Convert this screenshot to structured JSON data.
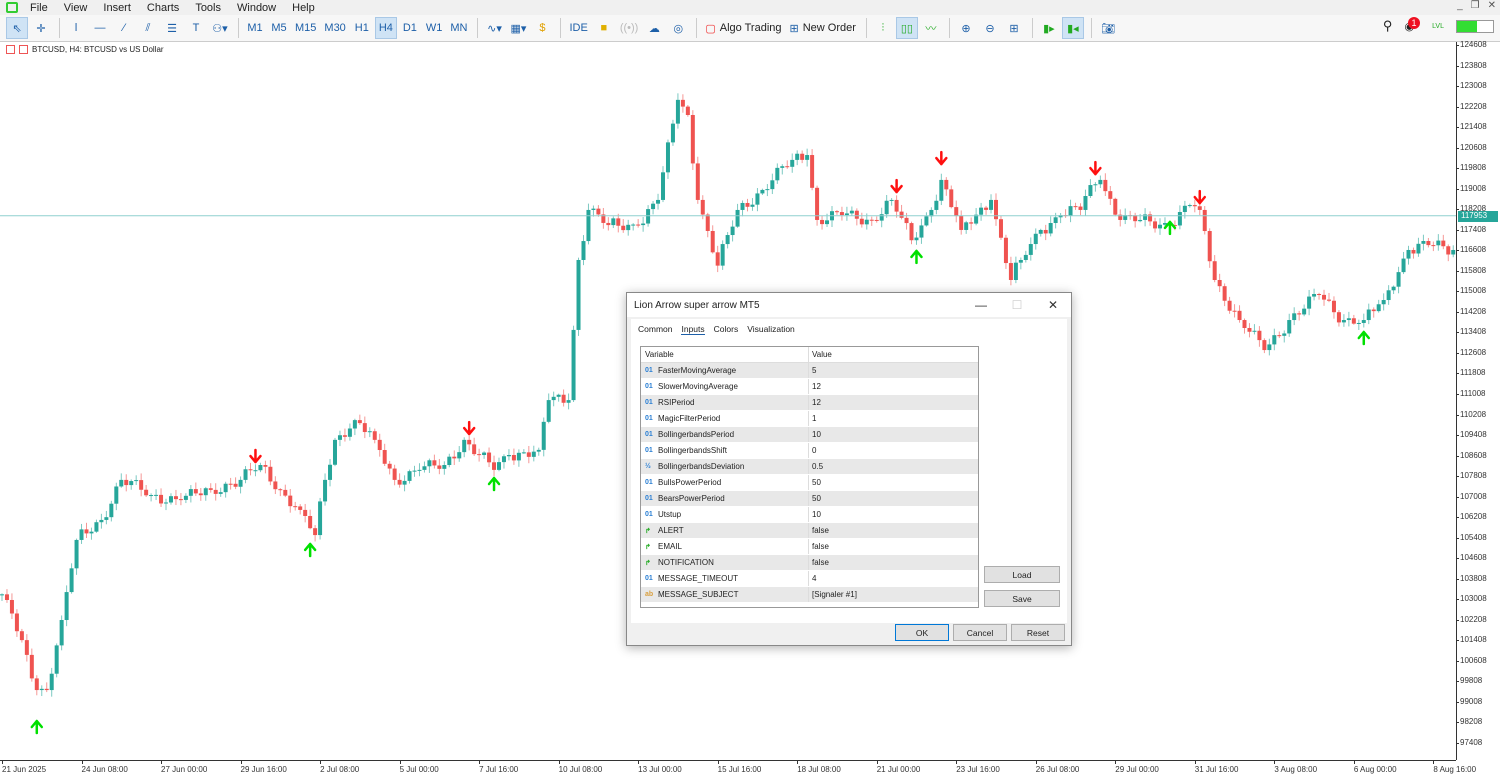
{
  "menu": [
    "File",
    "View",
    "Insert",
    "Charts",
    "Tools",
    "Window",
    "Help"
  ],
  "toolbar": {
    "timeframes": [
      "M1",
      "M5",
      "M15",
      "M30",
      "H1",
      "H4",
      "D1",
      "W1",
      "MN"
    ],
    "active_timeframe": "H4",
    "ide": "IDE",
    "algo_trading": "Algo Trading",
    "new_order": "New Order",
    "notification_count": "1",
    "signal_label": "LVL",
    "signal_level": 0.55
  },
  "chart": {
    "label": "BTCUSD, H4:  BTCUSD vs US Dollar",
    "current_price": "117953",
    "colors": {
      "bull": "#26a69a",
      "bear": "#ef5350",
      "price_line": "#8fd0cf",
      "up_arrow": "#00e000",
      "down_arrow": "#ff1010"
    },
    "price_labels": [
      "124608",
      "123808",
      "123008",
      "122208",
      "121408",
      "120608",
      "119808",
      "119008",
      "118208",
      "117408",
      "116608",
      "115808",
      "115008",
      "114208",
      "113408",
      "112608",
      "111808",
      "111008",
      "110208",
      "109408",
      "108608",
      "107808",
      "107008",
      "106208",
      "105408",
      "104608",
      "103808",
      "103008",
      "102208",
      "101408",
      "100608",
      "99808",
      "99008",
      "98208",
      "97408"
    ],
    "time_labels": [
      "21 Jun 2025",
      "24 Jun 08:00",
      "27 Jun 00:00",
      "29 Jun 16:00",
      "2 Jul 08:00",
      "5 Jul 00:00",
      "7 Jul 16:00",
      "10 Jul 08:00",
      "13 Jul 00:00",
      "15 Jul 16:00",
      "18 Jul 08:00",
      "21 Jul 00:00",
      "23 Jul 16:00",
      "26 Jul 08:00",
      "29 Jul 00:00",
      "31 Jul 16:00",
      "3 Aug 08:00",
      "6 Aug 00:00",
      "8 Aug 16:00"
    ],
    "close_path": [
      [
        0,
        103200
      ],
      [
        1,
        102980
      ],
      [
        7,
        99470
      ],
      [
        9,
        99470
      ],
      [
        12,
        102200
      ],
      [
        15,
        105320
      ],
      [
        20,
        106100
      ],
      [
        24,
        107660
      ],
      [
        30,
        107070
      ],
      [
        36,
        106880
      ],
      [
        42,
        107270
      ],
      [
        48,
        107660
      ],
      [
        52,
        108240
      ],
      [
        56,
        107270
      ],
      [
        60,
        106490
      ],
      [
        63,
        105510
      ],
      [
        65,
        107660
      ],
      [
        67,
        109220
      ],
      [
        71,
        109990
      ],
      [
        75,
        109220
      ],
      [
        79,
        107660
      ],
      [
        84,
        108050
      ],
      [
        89,
        108240
      ],
      [
        93,
        109220
      ],
      [
        96,
        108630
      ],
      [
        99,
        108050
      ],
      [
        102,
        108630
      ],
      [
        108,
        108830
      ],
      [
        110,
        110770
      ],
      [
        114,
        110770
      ],
      [
        116,
        116230
      ],
      [
        118,
        118180
      ],
      [
        122,
        117590
      ],
      [
        128,
        117590
      ],
      [
        132,
        118570
      ],
      [
        136,
        122470
      ],
      [
        138,
        121880
      ],
      [
        140,
        118570
      ],
      [
        144,
        116010
      ],
      [
        148,
        118180
      ],
      [
        153,
        118960
      ],
      [
        159,
        120130
      ],
      [
        162,
        120320
      ],
      [
        164,
        117790
      ],
      [
        169,
        117980
      ],
      [
        175,
        117790
      ],
      [
        179,
        118570
      ],
      [
        183,
        117000
      ],
      [
        187,
        118180
      ],
      [
        189,
        119350
      ],
      [
        193,
        117400
      ],
      [
        199,
        118570
      ],
      [
        203,
        115450
      ],
      [
        205,
        116230
      ],
      [
        209,
        117400
      ],
      [
        213,
        117980
      ],
      [
        217,
        118180
      ],
      [
        219,
        119150
      ],
      [
        221,
        119350
      ],
      [
        225,
        117790
      ],
      [
        229,
        117790
      ],
      [
        235,
        117590
      ],
      [
        239,
        118370
      ],
      [
        241,
        118180
      ],
      [
        244,
        115450
      ],
      [
        249,
        113890
      ],
      [
        254,
        112720
      ],
      [
        259,
        113890
      ],
      [
        265,
        114870
      ],
      [
        270,
        113890
      ],
      [
        274,
        113890
      ],
      [
        278,
        114670
      ],
      [
        283,
        116620
      ],
      [
        287,
        116810
      ],
      [
        292,
        116620
      ]
    ],
    "signals": [
      {
        "type": "sell",
        "index": 51,
        "price": 108590
      },
      {
        "type": "sell",
        "index": 94,
        "price": 109680
      },
      {
        "type": "sell",
        "index": 180,
        "price": 119110
      },
      {
        "type": "sell",
        "index": 189,
        "price": 120200
      },
      {
        "type": "sell",
        "index": 220,
        "price": 119810
      },
      {
        "type": "sell",
        "index": 241,
        "price": 118680
      },
      {
        "type": "buy",
        "index": 7,
        "price": 98030
      },
      {
        "type": "buy",
        "index": 62,
        "price": 104930
      },
      {
        "type": "buy",
        "index": 99,
        "price": 107500
      },
      {
        "type": "buy",
        "index": 184,
        "price": 116350
      },
      {
        "type": "buy",
        "index": 235,
        "price": 117480
      },
      {
        "type": "buy",
        "index": 274,
        "price": 113190
      }
    ]
  },
  "dialog": {
    "title": "Lion Arrow super arrow MT5",
    "tabs": [
      "Common",
      "Inputs",
      "Colors",
      "Visualization"
    ],
    "selected_tab": "Inputs",
    "columns": [
      "Variable",
      "Value"
    ],
    "params": [
      {
        "icon": "int",
        "name": "FasterMovingAverage",
        "value": "5"
      },
      {
        "icon": "int",
        "name": "SlowerMovingAverage",
        "value": "12"
      },
      {
        "icon": "int",
        "name": "RSIPeriod",
        "value": "12"
      },
      {
        "icon": "int",
        "name": "MagicFilterPeriod",
        "value": "1"
      },
      {
        "icon": "int",
        "name": "BollingerbandsPeriod",
        "value": "10"
      },
      {
        "icon": "int",
        "name": "BollingerbandsShift",
        "value": "0"
      },
      {
        "icon": "double",
        "name": "BollingerbandsDeviation",
        "value": "0.5"
      },
      {
        "icon": "int",
        "name": "BullsPowerPeriod",
        "value": "50"
      },
      {
        "icon": "int",
        "name": "BearsPowerPeriod",
        "value": "50"
      },
      {
        "icon": "int",
        "name": "Utstup",
        "value": "10"
      },
      {
        "icon": "bool",
        "name": "ALERT",
        "value": "false"
      },
      {
        "icon": "bool",
        "name": "EMAIL",
        "value": "false"
      },
      {
        "icon": "bool",
        "name": "NOTIFICATION",
        "value": "false"
      },
      {
        "icon": "int",
        "name": "MESSAGE_TIMEOUT",
        "value": "4"
      },
      {
        "icon": "string",
        "name": "MESSAGE_SUBJECT",
        "value": "[Signaler #1]"
      }
    ],
    "icon_glyphs": {
      "int": "01",
      "double": "½",
      "bool": "↱",
      "string": "ab"
    },
    "buttons": {
      "load": "Load",
      "save": "Save",
      "ok": "OK",
      "cancel": "Cancel",
      "reset": "Reset"
    }
  }
}
